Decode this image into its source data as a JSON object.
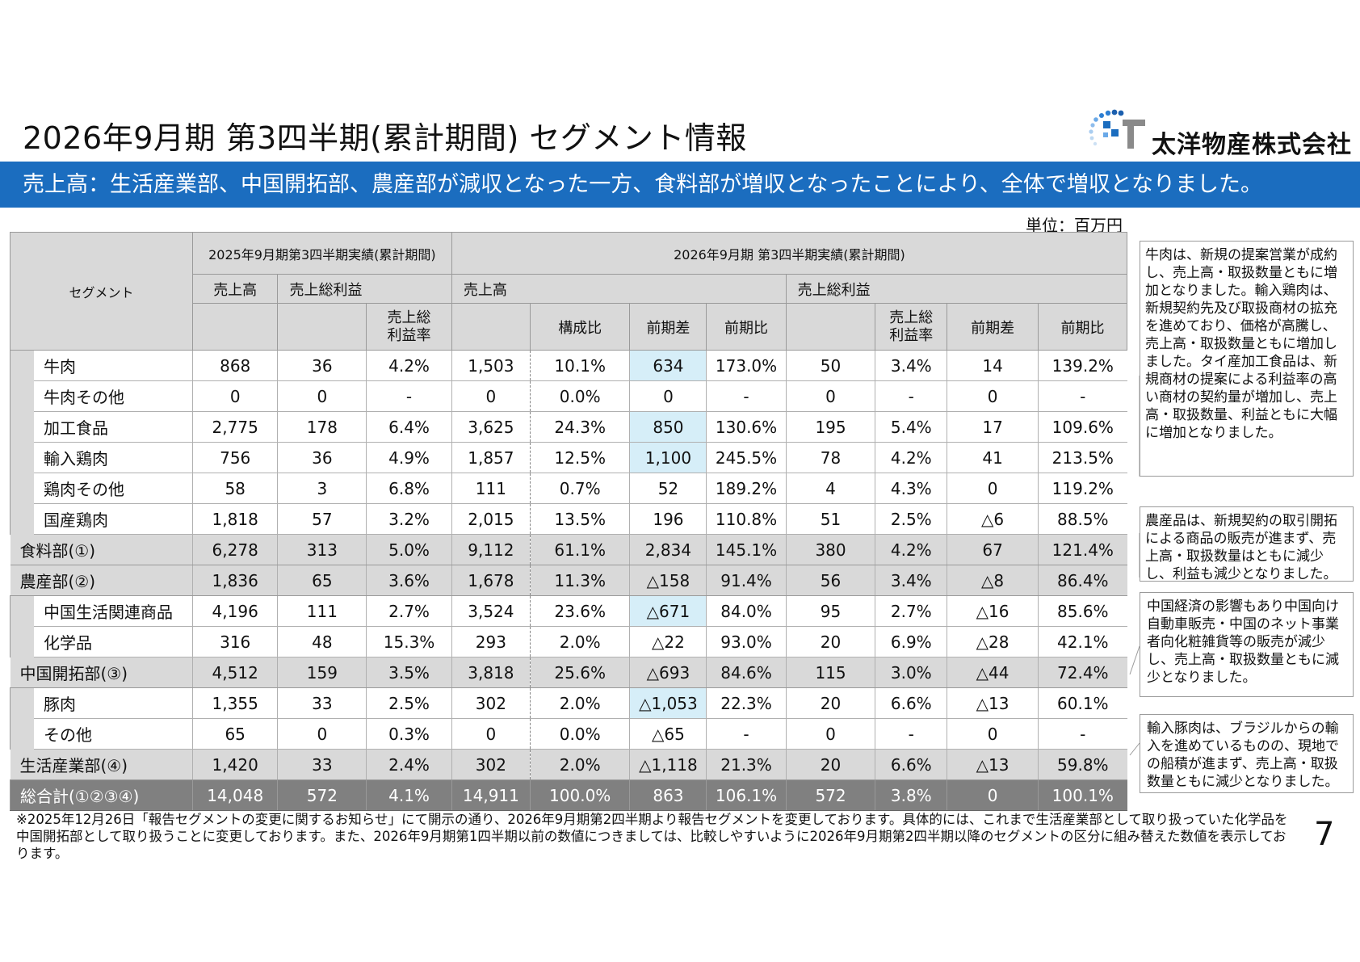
{
  "title": "2026年9月期 第3四半期(累計期間) セグメント情報",
  "logo": {
    "text": "太洋物産株式会社"
  },
  "banner": "売上高：生活産業部、中国開拓部、農産部が減収となった一方、食料部が増収となったことにより、全体で増収となりました。",
  "unit": "単位：百万円",
  "table": {
    "segment_header": "セグメント",
    "prev_period": "2025年9月期第3四半期実績(累計期間)",
    "curr_period": "2026年9月期 第3四半期実績(累計期間)",
    "h_sales": "売上高",
    "h_gross": "売上総利益",
    "h_margin_l1": "売上総",
    "h_margin_l2": "利益率",
    "h_share": "構成比",
    "h_diff": "前期差",
    "h_ratio": "前期比",
    "rows": [
      {
        "name": "牛肉",
        "v": [
          "868",
          "36",
          "4.2%",
          "1,503",
          "10.1%",
          "634",
          "173.0%",
          "50",
          "3.4%",
          "14",
          "139.2%"
        ]
      },
      {
        "name": "牛肉その他",
        "v": [
          "0",
          "0",
          "-",
          "0",
          "0.0%",
          "0",
          "-",
          "0",
          "-",
          "0",
          "-"
        ]
      },
      {
        "name": "加工食品",
        "v": [
          "2,775",
          "178",
          "6.4%",
          "3,625",
          "24.3%",
          "850",
          "130.6%",
          "195",
          "5.4%",
          "17",
          "109.6%"
        ]
      },
      {
        "name": "輸入鶏肉",
        "v": [
          "756",
          "36",
          "4.9%",
          "1,857",
          "12.5%",
          "1,100",
          "245.5%",
          "78",
          "4.2%",
          "41",
          "213.5%"
        ]
      },
      {
        "name": "鶏肉その他",
        "v": [
          "58",
          "3",
          "6.8%",
          "111",
          "0.7%",
          "52",
          "189.2%",
          "4",
          "4.3%",
          "0",
          "119.2%"
        ]
      },
      {
        "name": "国産鶏肉",
        "v": [
          "1,818",
          "57",
          "3.2%",
          "2,015",
          "13.5%",
          "196",
          "110.8%",
          "51",
          "2.5%",
          "△6",
          "88.5%"
        ]
      },
      {
        "name": "食料部(①)",
        "v": [
          "6,278",
          "313",
          "5.0%",
          "9,112",
          "61.1%",
          "2,834",
          "145.1%",
          "380",
          "4.2%",
          "67",
          "121.4%"
        ]
      },
      {
        "name": "農産部(②)",
        "v": [
          "1,836",
          "65",
          "3.6%",
          "1,678",
          "11.3%",
          "△158",
          "91.4%",
          "56",
          "3.4%",
          "△8",
          "86.4%"
        ]
      },
      {
        "name": "中国生活関連商品",
        "v": [
          "4,196",
          "111",
          "2.7%",
          "3,524",
          "23.6%",
          "△671",
          "84.0%",
          "95",
          "2.7%",
          "△16",
          "85.6%"
        ]
      },
      {
        "name": "化学品",
        "v": [
          "316",
          "48",
          "15.3%",
          "293",
          "2.0%",
          "△22",
          "93.0%",
          "20",
          "6.9%",
          "△28",
          "42.1%"
        ]
      },
      {
        "name": "中国開拓部(③)",
        "v": [
          "4,512",
          "159",
          "3.5%",
          "3,818",
          "25.6%",
          "△693",
          "84.6%",
          "115",
          "3.0%",
          "△44",
          "72.4%"
        ]
      },
      {
        "name": "豚肉",
        "v": [
          "1,355",
          "33",
          "2.5%",
          "302",
          "2.0%",
          "△1,053",
          "22.3%",
          "20",
          "6.6%",
          "△13",
          "60.1%"
        ]
      },
      {
        "name": "その他",
        "v": [
          "65",
          "0",
          "0.3%",
          "0",
          "0.0%",
          "△65",
          "-",
          "0",
          "-",
          "0",
          "-"
        ]
      },
      {
        "name": "生活産業部(④)",
        "v": [
          "1,420",
          "33",
          "2.4%",
          "302",
          "2.0%",
          "△1,118",
          "21.3%",
          "20",
          "6.6%",
          "△13",
          "59.8%"
        ]
      },
      {
        "name": "総合計(①②③④)",
        "v": [
          "14,048",
          "572",
          "4.1%",
          "14,911",
          "100.0%",
          "863",
          "106.1%",
          "572",
          "3.8%",
          "0",
          "100.1%"
        ]
      }
    ]
  },
  "notes": [
    "牛肉は、新規の提案営業が成約し、売上高・取扱数量ともに増加となりました。輸入鶏肉は、新規契約先及び取扱商材の拡充を進めており、価格が高騰し、売上高・取扱数量ともに増加しました。タイ産加工食品は、新規商材の提案による利益率の高い商材の契約量が増加し、売上高・取扱数量、利益ともに大幅に増加となりました。",
    "農産品は、新規契約の取引開拓による商品の販売が進まず、売上高・取扱数量はともに減少し、利益も減少となりました。",
    "中国経済の影響もあり中国向け自動車販売・中国のネット事業者向化粧雑貨等の販売が減少し、売上高・取扱数量ともに減少となりました。",
    "輸入豚肉は、ブラジルからの輸入を進めているものの、現地での船積が進まず、売上高・取扱数量ともに減少となりました。"
  ],
  "footnote": "※2025年12月26日「報告セグメントの変更に関するお知らせ」にて開示の通り、2026年9月期第2四半期より報告セグメントを変更しております。具体的には、これまで生活産業部として取り扱っていた化学品を中国開拓部として取り扱うことに変更しております。また、2026年9月期第1四半期以前の数値につきましては、比較しやすいように2026年9月期第2四半期以降のセグメントの区分に組み替えた数値を表示しております。",
  "page_number": "7"
}
